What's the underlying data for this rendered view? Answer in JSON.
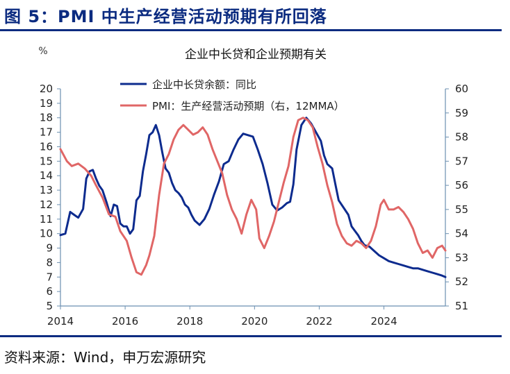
{
  "figure": {
    "title": "图 5：PMI 中生产经营活动预期有所回落",
    "source": "资料来源：Wind，申万宏源研究"
  },
  "chart_data": {
    "type": "line",
    "title": "企业中长贷和企业预期有关",
    "left_axis": {
      "unit_label": "%",
      "ylim": [
        5,
        20
      ],
      "ticks": [
        5,
        6,
        7,
        8,
        9,
        10,
        11,
        12,
        13,
        14,
        15,
        16,
        17,
        18,
        19,
        20
      ]
    },
    "right_axis": {
      "ylim": [
        51,
        60
      ],
      "ticks": [
        51,
        52,
        53,
        54,
        55,
        56,
        57,
        58,
        59,
        60
      ]
    },
    "x_axis": {
      "xlim": [
        2014.0,
        2025.9
      ],
      "tick_labels": [
        "2014",
        "2016",
        "2018",
        "2020",
        "2022",
        "2024"
      ]
    },
    "legend": {
      "placement": "top-center"
    },
    "series": [
      {
        "name": "企业中长贷余额：同比",
        "axis": "left",
        "color": "#0d2b8e",
        "x": [
          2014.0,
          2014.15,
          2014.3,
          2014.42,
          2014.55,
          2014.7,
          2014.8,
          2014.9,
          2015.0,
          2015.1,
          2015.2,
          2015.3,
          2015.42,
          2015.55,
          2015.65,
          2015.75,
          2015.85,
          2015.95,
          2016.05,
          2016.15,
          2016.25,
          2016.35,
          2016.45,
          2016.55,
          2016.65,
          2016.75,
          2016.85,
          2016.95,
          2017.05,
          2017.15,
          2017.25,
          2017.35,
          2017.45,
          2017.55,
          2017.65,
          2017.75,
          2017.85,
          2017.95,
          2018.05,
          2018.15,
          2018.3,
          2018.45,
          2018.6,
          2018.75,
          2018.9,
          2019.05,
          2019.2,
          2019.35,
          2019.5,
          2019.65,
          2019.8,
          2019.95,
          2020.1,
          2020.25,
          2020.4,
          2020.55,
          2020.7,
          2020.85,
          2021.0,
          2021.1,
          2021.2,
          2021.3,
          2021.45,
          2021.6,
          2021.75,
          2021.9,
          2022.05,
          2022.15,
          2022.25,
          2022.4,
          2022.5,
          2022.6,
          2022.75,
          2022.9,
          2023.0,
          2023.1,
          2023.2,
          2023.3,
          2023.4,
          2023.55,
          2023.7,
          2023.85,
          2024.0,
          2024.15,
          2024.3,
          2024.45,
          2024.6,
          2024.75,
          2024.9,
          2025.05,
          2025.2,
          2025.35,
          2025.5,
          2025.65,
          2025.8,
          2025.9
        ],
        "values": [
          9.9,
          10.0,
          11.5,
          11.3,
          11.1,
          11.7,
          13.8,
          14.3,
          14.4,
          13.8,
          13.3,
          13.0,
          12.2,
          11.2,
          12.0,
          11.9,
          10.7,
          10.5,
          10.5,
          10.0,
          10.3,
          12.3,
          12.6,
          14.3,
          15.5,
          16.8,
          17.0,
          17.5,
          16.8,
          15.6,
          14.5,
          14.2,
          13.5,
          13.0,
          12.8,
          12.5,
          12.0,
          11.8,
          11.3,
          10.9,
          10.6,
          11.0,
          11.7,
          12.7,
          13.6,
          14.8,
          15.0,
          15.8,
          16.5,
          16.9,
          16.8,
          16.7,
          15.8,
          14.8,
          13.5,
          12.0,
          11.6,
          11.8,
          12.1,
          12.2,
          13.4,
          15.8,
          17.5,
          18.0,
          17.6,
          17.0,
          16.4,
          15.4,
          14.8,
          14.5,
          13.4,
          12.3,
          11.8,
          11.3,
          10.5,
          10.2,
          9.9,
          9.5,
          9.2,
          9.1,
          8.8,
          8.5,
          8.3,
          8.1,
          8.0,
          7.9,
          7.8,
          7.7,
          7.6,
          7.6,
          7.5,
          7.4,
          7.3,
          7.2,
          7.1,
          7.0
        ],
        "_note": "values approximated from the figure"
      },
      {
        "name": "PMI：生产经营活动预期（右，12MMA）",
        "axis": "right",
        "color": "#e06666",
        "x": [
          2014.0,
          2014.2,
          2014.35,
          2014.55,
          2014.75,
          2014.95,
          2015.1,
          2015.3,
          2015.5,
          2015.7,
          2015.85,
          2016.05,
          2016.2,
          2016.35,
          2016.5,
          2016.65,
          2016.75,
          2016.9,
          2017.05,
          2017.2,
          2017.35,
          2017.5,
          2017.65,
          2017.8,
          2017.95,
          2018.1,
          2018.25,
          2018.4,
          2018.55,
          2018.7,
          2018.85,
          2019.0,
          2019.15,
          2019.3,
          2019.45,
          2019.6,
          2019.75,
          2019.9,
          2020.05,
          2020.15,
          2020.3,
          2020.45,
          2020.6,
          2020.75,
          2020.9,
          2021.05,
          2021.2,
          2021.35,
          2021.5,
          2021.65,
          2021.8,
          2021.95,
          2022.1,
          2022.25,
          2022.4,
          2022.55,
          2022.7,
          2022.85,
          2023.0,
          2023.15,
          2023.3,
          2023.45,
          2023.6,
          2023.75,
          2023.9,
          2024.0,
          2024.15,
          2024.3,
          2024.45,
          2024.6,
          2024.75,
          2024.9,
          2025.05,
          2025.2,
          2025.35,
          2025.5,
          2025.65,
          2025.8,
          2025.9
        ],
        "values": [
          57.5,
          57.0,
          56.8,
          56.9,
          56.7,
          56.4,
          56.0,
          55.5,
          54.8,
          54.7,
          54.1,
          53.7,
          53.0,
          52.4,
          52.3,
          52.7,
          53.1,
          53.9,
          55.6,
          56.9,
          57.3,
          57.9,
          58.3,
          58.5,
          58.3,
          58.1,
          58.2,
          58.4,
          58.1,
          57.5,
          57.0,
          56.5,
          55.6,
          55.0,
          54.6,
          54.0,
          54.8,
          55.4,
          55.0,
          53.8,
          53.4,
          53.9,
          54.5,
          55.3,
          56.1,
          56.8,
          58.0,
          58.7,
          58.8,
          58.7,
          58.4,
          57.6,
          56.9,
          56.0,
          55.3,
          54.4,
          53.9,
          53.6,
          53.5,
          53.7,
          53.6,
          53.4,
          53.7,
          54.3,
          55.2,
          55.4,
          55.0,
          55.0,
          55.1,
          54.9,
          54.6,
          54.2,
          53.6,
          53.2,
          53.3,
          53.0,
          53.4,
          53.5,
          53.3
        ],
        "_note": "values approximated from the figure"
      }
    ]
  }
}
